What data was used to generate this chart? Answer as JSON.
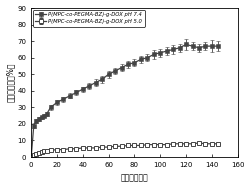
{
  "title": "",
  "xlabel": "时间（小时）",
  "ylabel": "累计释放率（%）",
  "xlim": [
    0,
    160
  ],
  "ylim": [
    0,
    90
  ],
  "xticks": [
    0,
    20,
    40,
    60,
    80,
    100,
    120,
    140,
    160
  ],
  "yticks": [
    0,
    10,
    20,
    30,
    40,
    50,
    60,
    70,
    80,
    90
  ],
  "line1_label": "P(MPC-co-PEGMA-BZ)-g-DOX pH 7.4",
  "line2_label": "P(MPC-co-PEGMA-BZ)-g-DOX pH 5.0",
  "line1_color": "#444444",
  "line2_color": "#444444",
  "background_color": "#ffffff",
  "ph74_x": [
    0,
    2,
    4,
    6,
    8,
    10,
    12,
    15,
    20,
    25,
    30,
    35,
    40,
    45,
    50,
    55,
    60,
    65,
    70,
    75,
    80,
    85,
    90,
    95,
    100,
    105,
    110,
    115,
    120,
    125,
    130,
    135,
    140,
    145
  ],
  "ph74_y": [
    0,
    19,
    22,
    23,
    24,
    25,
    26,
    30,
    33,
    35,
    37,
    39,
    41,
    43,
    45,
    47,
    50,
    52,
    54,
    56,
    57,
    59,
    60,
    62,
    63,
    64,
    65,
    66,
    68,
    67,
    66,
    67,
    67,
    67
  ],
  "ph74_yerr": [
    0,
    1.5,
    1.2,
    1.0,
    1.0,
    1.0,
    1.0,
    1.5,
    1.5,
    1.5,
    1.5,
    1.5,
    1.5,
    2.0,
    2.0,
    2.0,
    2.0,
    2.0,
    2.0,
    2.0,
    2.0,
    2.0,
    2.0,
    2.5,
    2.5,
    2.5,
    2.5,
    2.5,
    3.5,
    2.5,
    2.5,
    2.5,
    3.5,
    3.0
  ],
  "ph50_x": [
    0,
    2,
    4,
    6,
    8,
    10,
    12,
    15,
    20,
    25,
    30,
    35,
    40,
    45,
    50,
    55,
    60,
    65,
    70,
    75,
    80,
    85,
    90,
    95,
    100,
    105,
    110,
    115,
    120,
    125,
    130,
    135,
    140,
    145
  ],
  "ph50_y": [
    0,
    1.5,
    2.0,
    2.5,
    3.0,
    3.5,
    3.5,
    4.0,
    4.5,
    4.5,
    5.0,
    5.0,
    5.5,
    5.5,
    5.5,
    6.0,
    6.0,
    6.5,
    6.5,
    7.0,
    7.0,
    7.0,
    7.5,
    7.5,
    7.5,
    7.5,
    8.0,
    8.0,
    8.0,
    8.0,
    8.5,
    8.0,
    8.0,
    8.0
  ],
  "ph50_yerr": [
    0,
    0.3,
    0.3,
    0.3,
    0.3,
    0.3,
    0.3,
    0.3,
    0.3,
    0.3,
    0.3,
    0.3,
    0.3,
    0.3,
    0.3,
    0.3,
    0.3,
    0.3,
    0.3,
    0.3,
    0.3,
    0.3,
    0.4,
    0.4,
    0.4,
    0.4,
    0.4,
    0.4,
    0.4,
    0.4,
    0.4,
    0.4,
    0.4,
    0.4
  ]
}
